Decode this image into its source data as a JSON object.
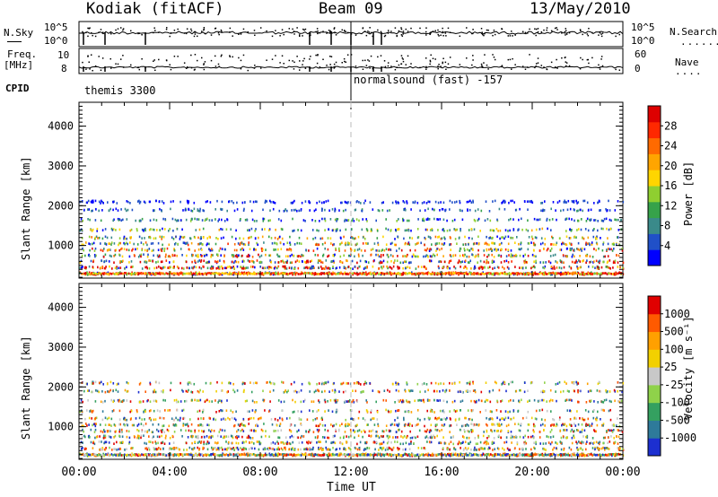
{
  "header": {
    "site": "Kodiak (fitACF)",
    "beam": "Beam 09",
    "date": "13/May/2010"
  },
  "summary": {
    "nsky_label": "N.Sky",
    "nsky_ticks": [
      "10^5",
      "10^0"
    ],
    "nsearch_label": "N.Search",
    "freq_label_line1": "Freq.",
    "freq_label_line2": "[MHz]",
    "freq_ticks": [
      "10",
      "8"
    ],
    "nave_label": "Nave",
    "nave_ticks": [
      "60",
      "0"
    ],
    "cpid_label": "CPID",
    "cpid_segments": [
      "themis 3300",
      "normalsound (fast) -157"
    ]
  },
  "colorbars": {
    "power": {
      "label": "Power [dB]",
      "ticks": [
        "28",
        "24",
        "20",
        "16",
        "12",
        "8",
        "4"
      ],
      "colors": [
        "#0000ff",
        "#2050c8",
        "#3a8a8a",
        "#36a24a",
        "#8fcf30",
        "#ffd500",
        "#ffa500",
        "#ff6a00",
        "#ff2800",
        "#dd0000"
      ]
    },
    "velocity": {
      "label": "Velocity [m s⁻¹]",
      "ticks": [
        "1000",
        "500",
        "100",
        "25",
        "-25",
        "-100",
        "-500",
        "-1000"
      ],
      "colors": [
        "#1c2fd0",
        "#2e7a9a",
        "#34a060",
        "#8fd24a",
        "#c8c8c8",
        "#f2d000",
        "#ffa000",
        "#ff5a00",
        "#e00000"
      ]
    }
  },
  "chart_data": [
    {
      "type": "scatter",
      "title": "",
      "ylabel": "Slant Range [km]",
      "xlabel": "",
      "x_ticks": [
        "00:00",
        "04:00",
        "08:00",
        "12:00",
        "16:00",
        "20:00",
        "00:00"
      ],
      "xlim": [
        0,
        24
      ],
      "ylim": [
        180,
        4600
      ],
      "y_ticks": [
        "1000",
        "2000",
        "3000",
        "4000"
      ],
      "colorbar": "Power [dB]",
      "marker_line_x": 12,
      "scatter_bands_km": [
        300,
        450,
        600,
        750,
        900,
        1050,
        1200,
        1400,
        1650,
        1900,
        2100
      ],
      "activity_hours": [
        0.5,
        2.0,
        4.0,
        5.5,
        7.0,
        9.5,
        11.5,
        14.0,
        15.5,
        17.0,
        19.0,
        21.5,
        23.5
      ]
    },
    {
      "type": "scatter",
      "title": "",
      "ylabel": "Slant Range [km]",
      "xlabel": "Time UT",
      "x_ticks": [
        "00:00",
        "04:00",
        "08:00",
        "12:00",
        "16:00",
        "20:00",
        "00:00"
      ],
      "xlim": [
        0,
        24
      ],
      "ylim": [
        180,
        4600
      ],
      "y_ticks": [
        "1000",
        "2000",
        "3000",
        "4000"
      ],
      "colorbar": "Velocity [m s⁻¹]",
      "marker_line_x": 12,
      "scatter_bands_km": [
        300,
        450,
        600,
        750,
        900,
        1050,
        1200,
        1400,
        1650,
        1900,
        2100
      ],
      "activity_hours": [
        0.5,
        2.0,
        4.0,
        5.5,
        7.0,
        9.5,
        11.5,
        14.0,
        15.5,
        17.0,
        19.0,
        21.5,
        23.5
      ]
    }
  ]
}
